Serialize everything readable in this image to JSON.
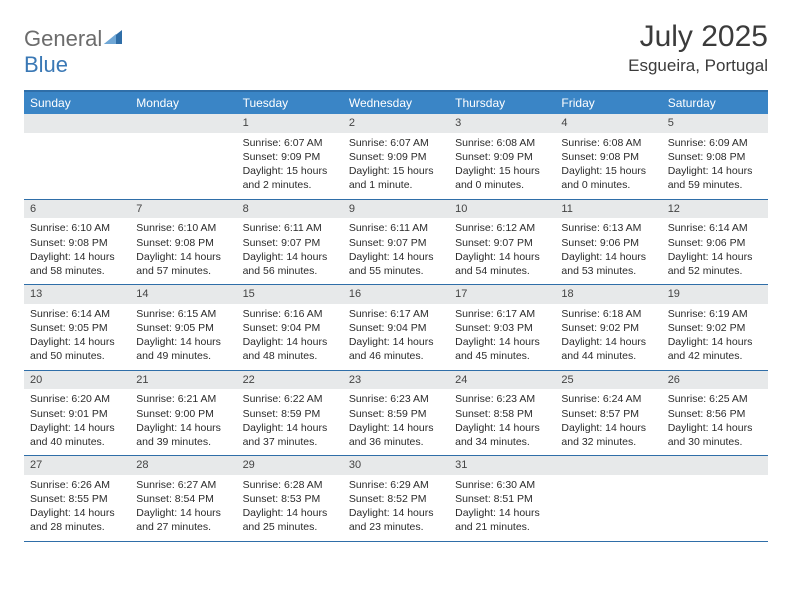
{
  "logo": {
    "part1": "General",
    "part2": "Blue"
  },
  "title": "July 2025",
  "location": "Esgueira, Portugal",
  "colors": {
    "header_bar": "#3a85c6",
    "header_border": "#2f6ea8",
    "daynum_bg": "#e7e9ea",
    "text": "#2b2b2b",
    "logo_gray": "#6c6c6c",
    "logo_blue": "#3a78b5",
    "white": "#ffffff"
  },
  "typography": {
    "title_size_pt": 30,
    "location_size_pt": 17,
    "dayhead_size_pt": 12,
    "cell_size_pt": 10.5
  },
  "calendar": {
    "type": "table",
    "day_headers": [
      "Sunday",
      "Monday",
      "Tuesday",
      "Wednesday",
      "Thursday",
      "Friday",
      "Saturday"
    ],
    "first_weekday_index": 2,
    "days": [
      {
        "n": 1,
        "sunrise": "6:07 AM",
        "sunset": "9:09 PM",
        "daylight": "15 hours and 2 minutes."
      },
      {
        "n": 2,
        "sunrise": "6:07 AM",
        "sunset": "9:09 PM",
        "daylight": "15 hours and 1 minute."
      },
      {
        "n": 3,
        "sunrise": "6:08 AM",
        "sunset": "9:09 PM",
        "daylight": "15 hours and 0 minutes."
      },
      {
        "n": 4,
        "sunrise": "6:08 AM",
        "sunset": "9:08 PM",
        "daylight": "15 hours and 0 minutes."
      },
      {
        "n": 5,
        "sunrise": "6:09 AM",
        "sunset": "9:08 PM",
        "daylight": "14 hours and 59 minutes."
      },
      {
        "n": 6,
        "sunrise": "6:10 AM",
        "sunset": "9:08 PM",
        "daylight": "14 hours and 58 minutes."
      },
      {
        "n": 7,
        "sunrise": "6:10 AM",
        "sunset": "9:08 PM",
        "daylight": "14 hours and 57 minutes."
      },
      {
        "n": 8,
        "sunrise": "6:11 AM",
        "sunset": "9:07 PM",
        "daylight": "14 hours and 56 minutes."
      },
      {
        "n": 9,
        "sunrise": "6:11 AM",
        "sunset": "9:07 PM",
        "daylight": "14 hours and 55 minutes."
      },
      {
        "n": 10,
        "sunrise": "6:12 AM",
        "sunset": "9:07 PM",
        "daylight": "14 hours and 54 minutes."
      },
      {
        "n": 11,
        "sunrise": "6:13 AM",
        "sunset": "9:06 PM",
        "daylight": "14 hours and 53 minutes."
      },
      {
        "n": 12,
        "sunrise": "6:14 AM",
        "sunset": "9:06 PM",
        "daylight": "14 hours and 52 minutes."
      },
      {
        "n": 13,
        "sunrise": "6:14 AM",
        "sunset": "9:05 PM",
        "daylight": "14 hours and 50 minutes."
      },
      {
        "n": 14,
        "sunrise": "6:15 AM",
        "sunset": "9:05 PM",
        "daylight": "14 hours and 49 minutes."
      },
      {
        "n": 15,
        "sunrise": "6:16 AM",
        "sunset": "9:04 PM",
        "daylight": "14 hours and 48 minutes."
      },
      {
        "n": 16,
        "sunrise": "6:17 AM",
        "sunset": "9:04 PM",
        "daylight": "14 hours and 46 minutes."
      },
      {
        "n": 17,
        "sunrise": "6:17 AM",
        "sunset": "9:03 PM",
        "daylight": "14 hours and 45 minutes."
      },
      {
        "n": 18,
        "sunrise": "6:18 AM",
        "sunset": "9:02 PM",
        "daylight": "14 hours and 44 minutes."
      },
      {
        "n": 19,
        "sunrise": "6:19 AM",
        "sunset": "9:02 PM",
        "daylight": "14 hours and 42 minutes."
      },
      {
        "n": 20,
        "sunrise": "6:20 AM",
        "sunset": "9:01 PM",
        "daylight": "14 hours and 40 minutes."
      },
      {
        "n": 21,
        "sunrise": "6:21 AM",
        "sunset": "9:00 PM",
        "daylight": "14 hours and 39 minutes."
      },
      {
        "n": 22,
        "sunrise": "6:22 AM",
        "sunset": "8:59 PM",
        "daylight": "14 hours and 37 minutes."
      },
      {
        "n": 23,
        "sunrise": "6:23 AM",
        "sunset": "8:59 PM",
        "daylight": "14 hours and 36 minutes."
      },
      {
        "n": 24,
        "sunrise": "6:23 AM",
        "sunset": "8:58 PM",
        "daylight": "14 hours and 34 minutes."
      },
      {
        "n": 25,
        "sunrise": "6:24 AM",
        "sunset": "8:57 PM",
        "daylight": "14 hours and 32 minutes."
      },
      {
        "n": 26,
        "sunrise": "6:25 AM",
        "sunset": "8:56 PM",
        "daylight": "14 hours and 30 minutes."
      },
      {
        "n": 27,
        "sunrise": "6:26 AM",
        "sunset": "8:55 PM",
        "daylight": "14 hours and 28 minutes."
      },
      {
        "n": 28,
        "sunrise": "6:27 AM",
        "sunset": "8:54 PM",
        "daylight": "14 hours and 27 minutes."
      },
      {
        "n": 29,
        "sunrise": "6:28 AM",
        "sunset": "8:53 PM",
        "daylight": "14 hours and 25 minutes."
      },
      {
        "n": 30,
        "sunrise": "6:29 AM",
        "sunset": "8:52 PM",
        "daylight": "14 hours and 23 minutes."
      },
      {
        "n": 31,
        "sunrise": "6:30 AM",
        "sunset": "8:51 PM",
        "daylight": "14 hours and 21 minutes."
      }
    ],
    "labels": {
      "sunrise_prefix": "Sunrise: ",
      "sunset_prefix": "Sunset: ",
      "daylight_prefix": "Daylight: "
    }
  }
}
